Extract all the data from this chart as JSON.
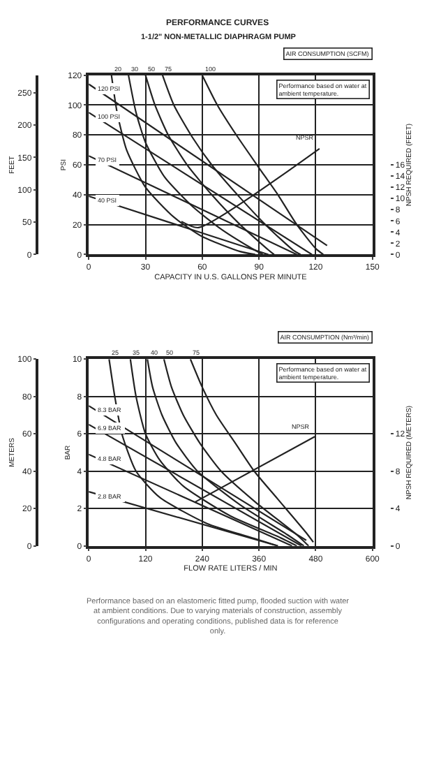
{
  "chart_data": [
    {
      "type": "line",
      "title": "PERFORMANCE CURVES",
      "subtitle": "1-1/2\" NON-METALLIC DIAPHRAGM PUMP",
      "xlabel": "CAPACITY IN U.S. GALLONS PER MINUTE",
      "ylabel": "PSI",
      "y2label": "FEET",
      "y3label": "NPSH REQUIRED (FEET)",
      "xlim": [
        0,
        150
      ],
      "xticks": [
        0,
        30,
        60,
        90,
        120,
        150
      ],
      "ylim": [
        0,
        120
      ],
      "yticks": [
        0,
        20,
        40,
        60,
        80,
        100,
        120
      ],
      "y2lim": [
        0,
        277
      ],
      "y2ticks": [
        0,
        50,
        100,
        150,
        200,
        250
      ],
      "y3lim": [
        0,
        32
      ],
      "y3ticks": [
        0,
        2,
        4,
        6,
        8,
        10,
        12,
        14,
        16
      ],
      "grid": true,
      "marker": "none",
      "line_style": "solid",
      "annotations": [
        "Performance based on water at ambient temperature.",
        "AIR CONSUMPTION (SCFM)"
      ],
      "series": [
        {
          "name": "120 PSI",
          "color": "#222222",
          "x": [
            0,
            126
          ],
          "values": [
            114,
            6
          ]
        },
        {
          "name": "100 PSI",
          "color": "#222222",
          "x": [
            0,
            118
          ],
          "values": [
            95,
            0
          ]
        },
        {
          "name": "70 PSI",
          "color": "#222222",
          "x": [
            0,
            110
          ],
          "values": [
            66,
            0
          ]
        },
        {
          "name": "40 PSI",
          "color": "#222222",
          "x": [
            0,
            95
          ],
          "values": [
            39,
            0
          ]
        },
        {
          "name": "20",
          "color": "#222222",
          "x": [
            12,
            15,
            20,
            30,
            45,
            60,
            80,
            88
          ],
          "values": [
            120,
            95,
            70,
            45,
            25,
            12,
            2,
            0
          ]
        },
        {
          "name": "30",
          "color": "#222222",
          "x": [
            21,
            25,
            30,
            40,
            55,
            70,
            85,
            92
          ],
          "values": [
            120,
            95,
            75,
            52,
            32,
            17,
            5,
            0
          ]
        },
        {
          "name": "50",
          "color": "#222222",
          "x": [
            30,
            35,
            42,
            52,
            65,
            80,
            95,
            98
          ],
          "values": [
            120,
            100,
            80,
            60,
            40,
            20,
            3,
            0
          ]
        },
        {
          "name": "75",
          "color": "#222222",
          "x": [
            39,
            45,
            55,
            65,
            80,
            95,
            108,
            112
          ],
          "values": [
            120,
            100,
            78,
            60,
            38,
            18,
            3,
            0
          ]
        },
        {
          "name": "100",
          "color": "#222222",
          "x": [
            60,
            68,
            78,
            90,
            100,
            110,
            120,
            124
          ],
          "values": [
            120,
            100,
            80,
            58,
            40,
            20,
            4,
            0
          ]
        },
        {
          "name": "NPSR",
          "color": "#222222",
          "axis": "y3",
          "x": [
            49,
            58,
            122
          ],
          "values": [
            5.9,
            4.8,
            18.9
          ]
        }
      ]
    },
    {
      "type": "line",
      "xlabel": "FLOW RATE LITERS / MIN",
      "ylabel": "BAR",
      "y2label": "METERS",
      "y3label": "NPSH REQUIRED (METERS)",
      "xlim": [
        0,
        600
      ],
      "xticks": [
        0,
        120,
        240,
        360,
        480,
        600
      ],
      "ylim": [
        0,
        10
      ],
      "yticks": [
        0,
        2,
        4,
        6,
        8,
        10
      ],
      "y2lim": [
        0,
        100
      ],
      "y2ticks": [
        0,
        20,
        40,
        60,
        80,
        100
      ],
      "y3lim": [
        0,
        20
      ],
      "y3ticks": [
        0,
        4,
        8,
        12
      ],
      "grid": true,
      "marker": "none",
      "line_style": "solid",
      "annotations": [
        "Performance based on water at ambient temperature.",
        "AIR CONSUMPTION (Nm³/min)",
        "Performance based on an elastomeric fitted pump, flooded suction with water at ambient conditions. Due to varying materials of construction, assembly configurations and operating conditions, published data is for reference only."
      ],
      "series": [
        {
          "name": "8.3 BAR",
          "color": "#222222",
          "x": [
            0,
            460
          ],
          "values": [
            7.5,
            0.3
          ]
        },
        {
          "name": "6.9 BAR",
          "color": "#222222",
          "x": [
            0,
            450
          ],
          "values": [
            6.5,
            0
          ]
        },
        {
          "name": "4.8 BAR",
          "color": "#222222",
          "x": [
            0,
            430
          ],
          "values": [
            4.9,
            0
          ]
        },
        {
          "name": "2.8 BAR",
          "color": "#222222",
          "x": [
            0,
            400
          ],
          "values": [
            2.9,
            0
          ]
        },
        {
          "name": "25",
          "color": "#222222",
          "x": [
            43,
            55,
            70,
            100,
            150,
            250,
            350,
            400
          ],
          "values": [
            10,
            8,
            6,
            4,
            2.6,
            1.2,
            0.4,
            0
          ]
        },
        {
          "name": "35",
          "color": "#222222",
          "x": [
            88,
            100,
            120,
            150,
            200,
            300,
            400,
            440
          ],
          "values": [
            10,
            8,
            6,
            4.6,
            3.2,
            1.6,
            0.5,
            0
          ]
        },
        {
          "name": "40",
          "color": "#222222",
          "x": [
            124,
            135,
            155,
            185,
            230,
            320,
            420,
            455
          ],
          "values": [
            10,
            8.5,
            7,
            5.5,
            4,
            2.2,
            0.6,
            0
          ]
        },
        {
          "name": "50",
          "color": "#222222",
          "x": [
            159,
            175,
            200,
            235,
            280,
            350,
            440,
            465
          ],
          "values": [
            10,
            8.5,
            7,
            5.5,
            4,
            2.4,
            0.6,
            0
          ]
        },
        {
          "name": "75",
          "color": "#222222",
          "x": [
            215,
            240,
            270,
            310,
            350,
            400,
            460,
            475
          ],
          "values": [
            10,
            8.5,
            7,
            5.5,
            4,
            2.5,
            0.7,
            0.2
          ]
        },
        {
          "name": "NPSR",
          "color": "#222222",
          "axis": "y3",
          "x": [
            225,
            478
          ],
          "values": [
            4.7,
            11.7
          ]
        }
      ]
    }
  ]
}
